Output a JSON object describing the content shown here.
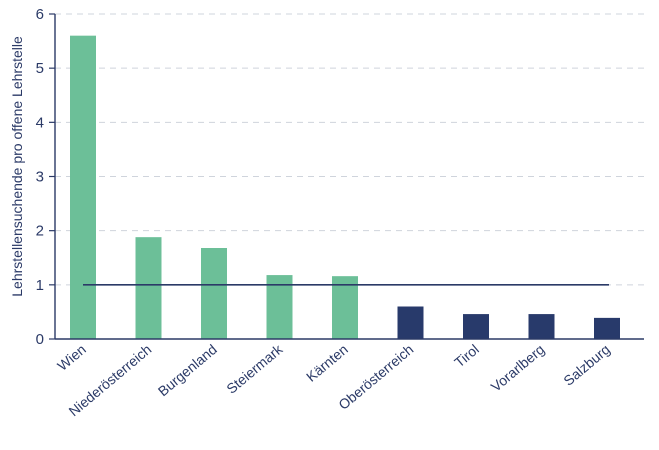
{
  "chart_data": {
    "type": "bar",
    "title": "",
    "xlabel": "",
    "ylabel": "Lehrstellensuchende pro offene Lehrstelle",
    "ylim": [
      0,
      6
    ],
    "yticks": [
      0,
      1,
      2,
      3,
      4,
      5,
      6
    ],
    "grid": "horizontal-dashed",
    "legend": "none",
    "categories": [
      "Wien",
      "Niederösterreich",
      "Burgenland",
      "Steiermark",
      "Kärnten",
      "Oberösterreich",
      "Tirol",
      "Vorarlberg",
      "Salzburg"
    ],
    "values": [
      5.6,
      1.88,
      1.68,
      1.18,
      1.16,
      0.6,
      0.46,
      0.46,
      0.39
    ],
    "bar_colors": [
      "#6cbf98",
      "#6cbf98",
      "#6cbf98",
      "#6cbf98",
      "#6cbf98",
      "#283a6b",
      "#283a6b",
      "#283a6b",
      "#283a6b"
    ],
    "reference_line": {
      "value": 1,
      "color": "#2b3a67"
    },
    "axis_color": "#2b3a67",
    "grid_color": "#cfd4dc"
  }
}
